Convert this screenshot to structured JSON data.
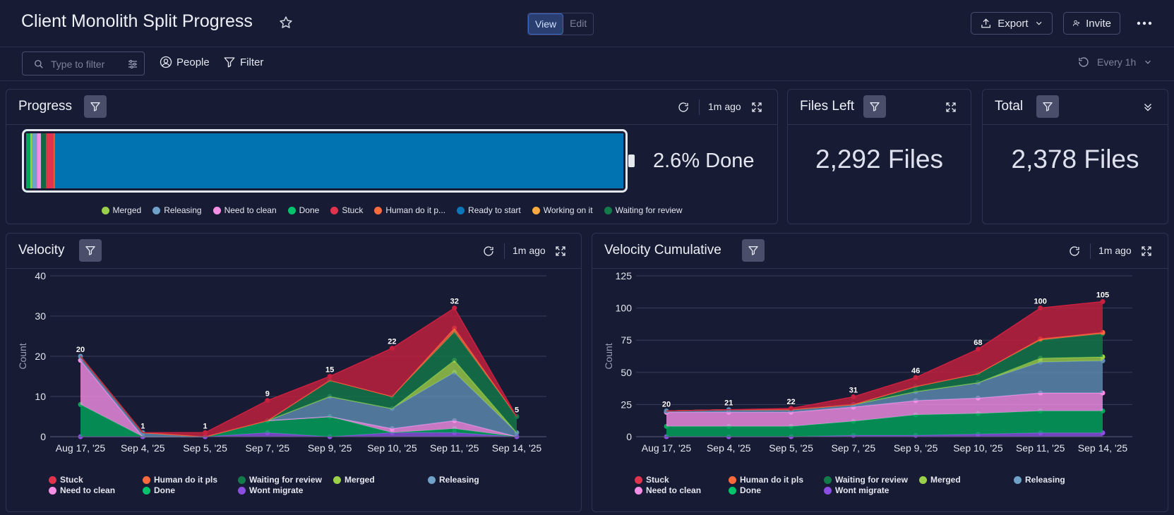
{
  "header": {
    "title": "Client Monolith Split Progress",
    "view_label": "View",
    "edit_label": "Edit",
    "export_label": "Export",
    "invite_label": "Invite"
  },
  "toolbar": {
    "search_placeholder": "Type to filter",
    "people_label": "People",
    "filter_label": "Filter",
    "refresh_label": "Every 1h"
  },
  "progress": {
    "title": "Progress",
    "updated": "1m ago",
    "done_text": "2.6% Done",
    "segments": [
      {
        "name": "Done",
        "pct": 0.7,
        "color": "#00a65a"
      },
      {
        "name": "Merged",
        "pct": 0.3,
        "color": "#9bd04a"
      },
      {
        "name": "Releasing",
        "pct": 0.8,
        "color": "#6fa1c9"
      },
      {
        "name": "Need to clean",
        "pct": 0.7,
        "color": "#f58fe6"
      },
      {
        "name": "Waiting for review",
        "pct": 0.8,
        "color": "#0f6a3f"
      },
      {
        "name": "Stuck",
        "pct": 1.3,
        "color": "#e0344d"
      },
      {
        "name": "Human do it pls",
        "pct": 0.2,
        "color": "#ff6a3d"
      },
      {
        "name": "Ready to start",
        "pct": 95.2,
        "color": "#0073b0"
      }
    ],
    "legend": [
      {
        "label": "Merged",
        "color": "#9bd04a"
      },
      {
        "label": "Releasing",
        "color": "#6fa1c9"
      },
      {
        "label": "Need to clean",
        "color": "#f58fe6"
      },
      {
        "label": "Done",
        "color": "#00c36b"
      },
      {
        "label": "Stuck",
        "color": "#e0344d"
      },
      {
        "label": "Human do it p...",
        "color": "#ff6a3d"
      },
      {
        "label": "Ready to start",
        "color": "#0b76b8"
      },
      {
        "label": "Working on it",
        "color": "#fdab3d"
      },
      {
        "label": "Waiting for review",
        "color": "#137a4a"
      }
    ]
  },
  "files_left": {
    "title": "Files Left",
    "value": "2,292 Files"
  },
  "total": {
    "title": "Total",
    "value": "2,378 Files"
  },
  "velocity": {
    "title": "Velocity",
    "updated": "1m ago"
  },
  "velocity_cumulative": {
    "title": "Velocity Cumulative",
    "updated": "1m ago"
  },
  "chart_legend": [
    {
      "label": "Stuck",
      "color": "#e0344d"
    },
    {
      "label": "Human do it pls",
      "color": "#ff6a3d"
    },
    {
      "label": "Waiting for review",
      "color": "#137a4a"
    },
    {
      "label": "Merged",
      "color": "#9bd04a"
    },
    {
      "label": "Releasing",
      "color": "#6fa1c9"
    },
    {
      "label": "Need to clean",
      "color": "#f58fe6"
    },
    {
      "label": "Done",
      "color": "#00c36b"
    },
    {
      "label": "Wont migrate",
      "color": "#8a4fe0"
    }
  ],
  "chart_data": [
    {
      "type": "area",
      "title": "Velocity",
      "xlabel": "",
      "ylabel": "Count",
      "ylim": [
        0,
        40
      ],
      "yticks": [
        0,
        10,
        20,
        30,
        40
      ],
      "stacked": true,
      "categories": [
        "Aug 17, '25",
        "Sep 4, '25",
        "Sep 5, '25",
        "Sep 7, '25",
        "Sep 9, '25",
        "Sep 10, '25",
        "Sep 11, '25",
        "Sep 14, '25"
      ],
      "totals": [
        20,
        1,
        1,
        9,
        15,
        22,
        32,
        5
      ],
      "series": [
        {
          "name": "Wont migrate",
          "color": "#8a4fe0",
          "values": [
            0,
            0,
            0,
            1,
            0,
            1,
            1,
            0
          ]
        },
        {
          "name": "Done",
          "color": "#00a65a",
          "values": [
            8,
            0,
            0,
            3,
            5,
            0,
            1,
            0
          ]
        },
        {
          "name": "Need to clean",
          "color": "#f58fe6",
          "values": [
            11,
            0,
            0,
            0,
            0,
            1,
            2,
            0
          ]
        },
        {
          "name": "Releasing",
          "color": "#5f8fb4",
          "values": [
            1,
            1,
            0,
            0,
            5,
            5,
            12,
            1
          ]
        },
        {
          "name": "Merged",
          "color": "#9bd04a",
          "values": [
            0,
            0,
            0,
            0,
            0,
            0,
            3,
            0
          ]
        },
        {
          "name": "Waiting for review",
          "color": "#137a4a",
          "values": [
            0,
            0,
            0,
            0,
            4,
            3,
            7,
            4
          ]
        },
        {
          "name": "Human do it pls",
          "color": "#ff6a3d",
          "values": [
            0,
            0,
            0,
            0,
            0,
            0,
            1,
            0
          ]
        },
        {
          "name": "Stuck",
          "color": "#c8203f",
          "values": [
            0,
            0,
            1,
            5,
            1,
            12,
            5,
            0
          ]
        }
      ]
    },
    {
      "type": "area",
      "title": "Velocity Cumulative",
      "xlabel": "",
      "ylabel": "Count",
      "ylim": [
        0,
        125
      ],
      "yticks": [
        0,
        25,
        50,
        75,
        100,
        125
      ],
      "stacked": true,
      "categories": [
        "Aug 17, '25",
        "Sep 4, '25",
        "Sep 5, '25",
        "Sep 7, '25",
        "Sep 9, '25",
        "Sep 10, '25",
        "Sep 11, '25",
        "Sep 14, '25"
      ],
      "totals": [
        20,
        21,
        22,
        31,
        46,
        68,
        100,
        105
      ],
      "series": [
        {
          "name": "Wont migrate",
          "color": "#8a4fe0",
          "values": [
            0,
            0,
            0,
            1,
            1,
            2,
            3,
            3
          ]
        },
        {
          "name": "Done",
          "color": "#00a65a",
          "values": [
            8,
            8,
            8,
            11,
            16,
            16,
            17,
            17
          ]
        },
        {
          "name": "Need to clean",
          "color": "#f58fe6",
          "values": [
            11,
            11,
            11,
            11,
            11,
            12,
            14,
            14
          ]
        },
        {
          "name": "Releasing",
          "color": "#5f8fb4",
          "values": [
            1,
            2,
            2,
            2,
            7,
            12,
            24,
            25
          ]
        },
        {
          "name": "Merged",
          "color": "#9bd04a",
          "values": [
            0,
            0,
            0,
            0,
            0,
            0,
            3,
            3
          ]
        },
        {
          "name": "Waiting for review",
          "color": "#137a4a",
          "values": [
            0,
            0,
            0,
            0,
            4,
            7,
            14,
            18
          ]
        },
        {
          "name": "Human do it pls",
          "color": "#ff6a3d",
          "values": [
            0,
            0,
            0,
            0,
            0,
            0,
            1,
            1
          ]
        },
        {
          "name": "Stuck",
          "color": "#c8203f",
          "values": [
            0,
            0,
            1,
            6,
            7,
            19,
            24,
            24
          ]
        }
      ]
    }
  ]
}
